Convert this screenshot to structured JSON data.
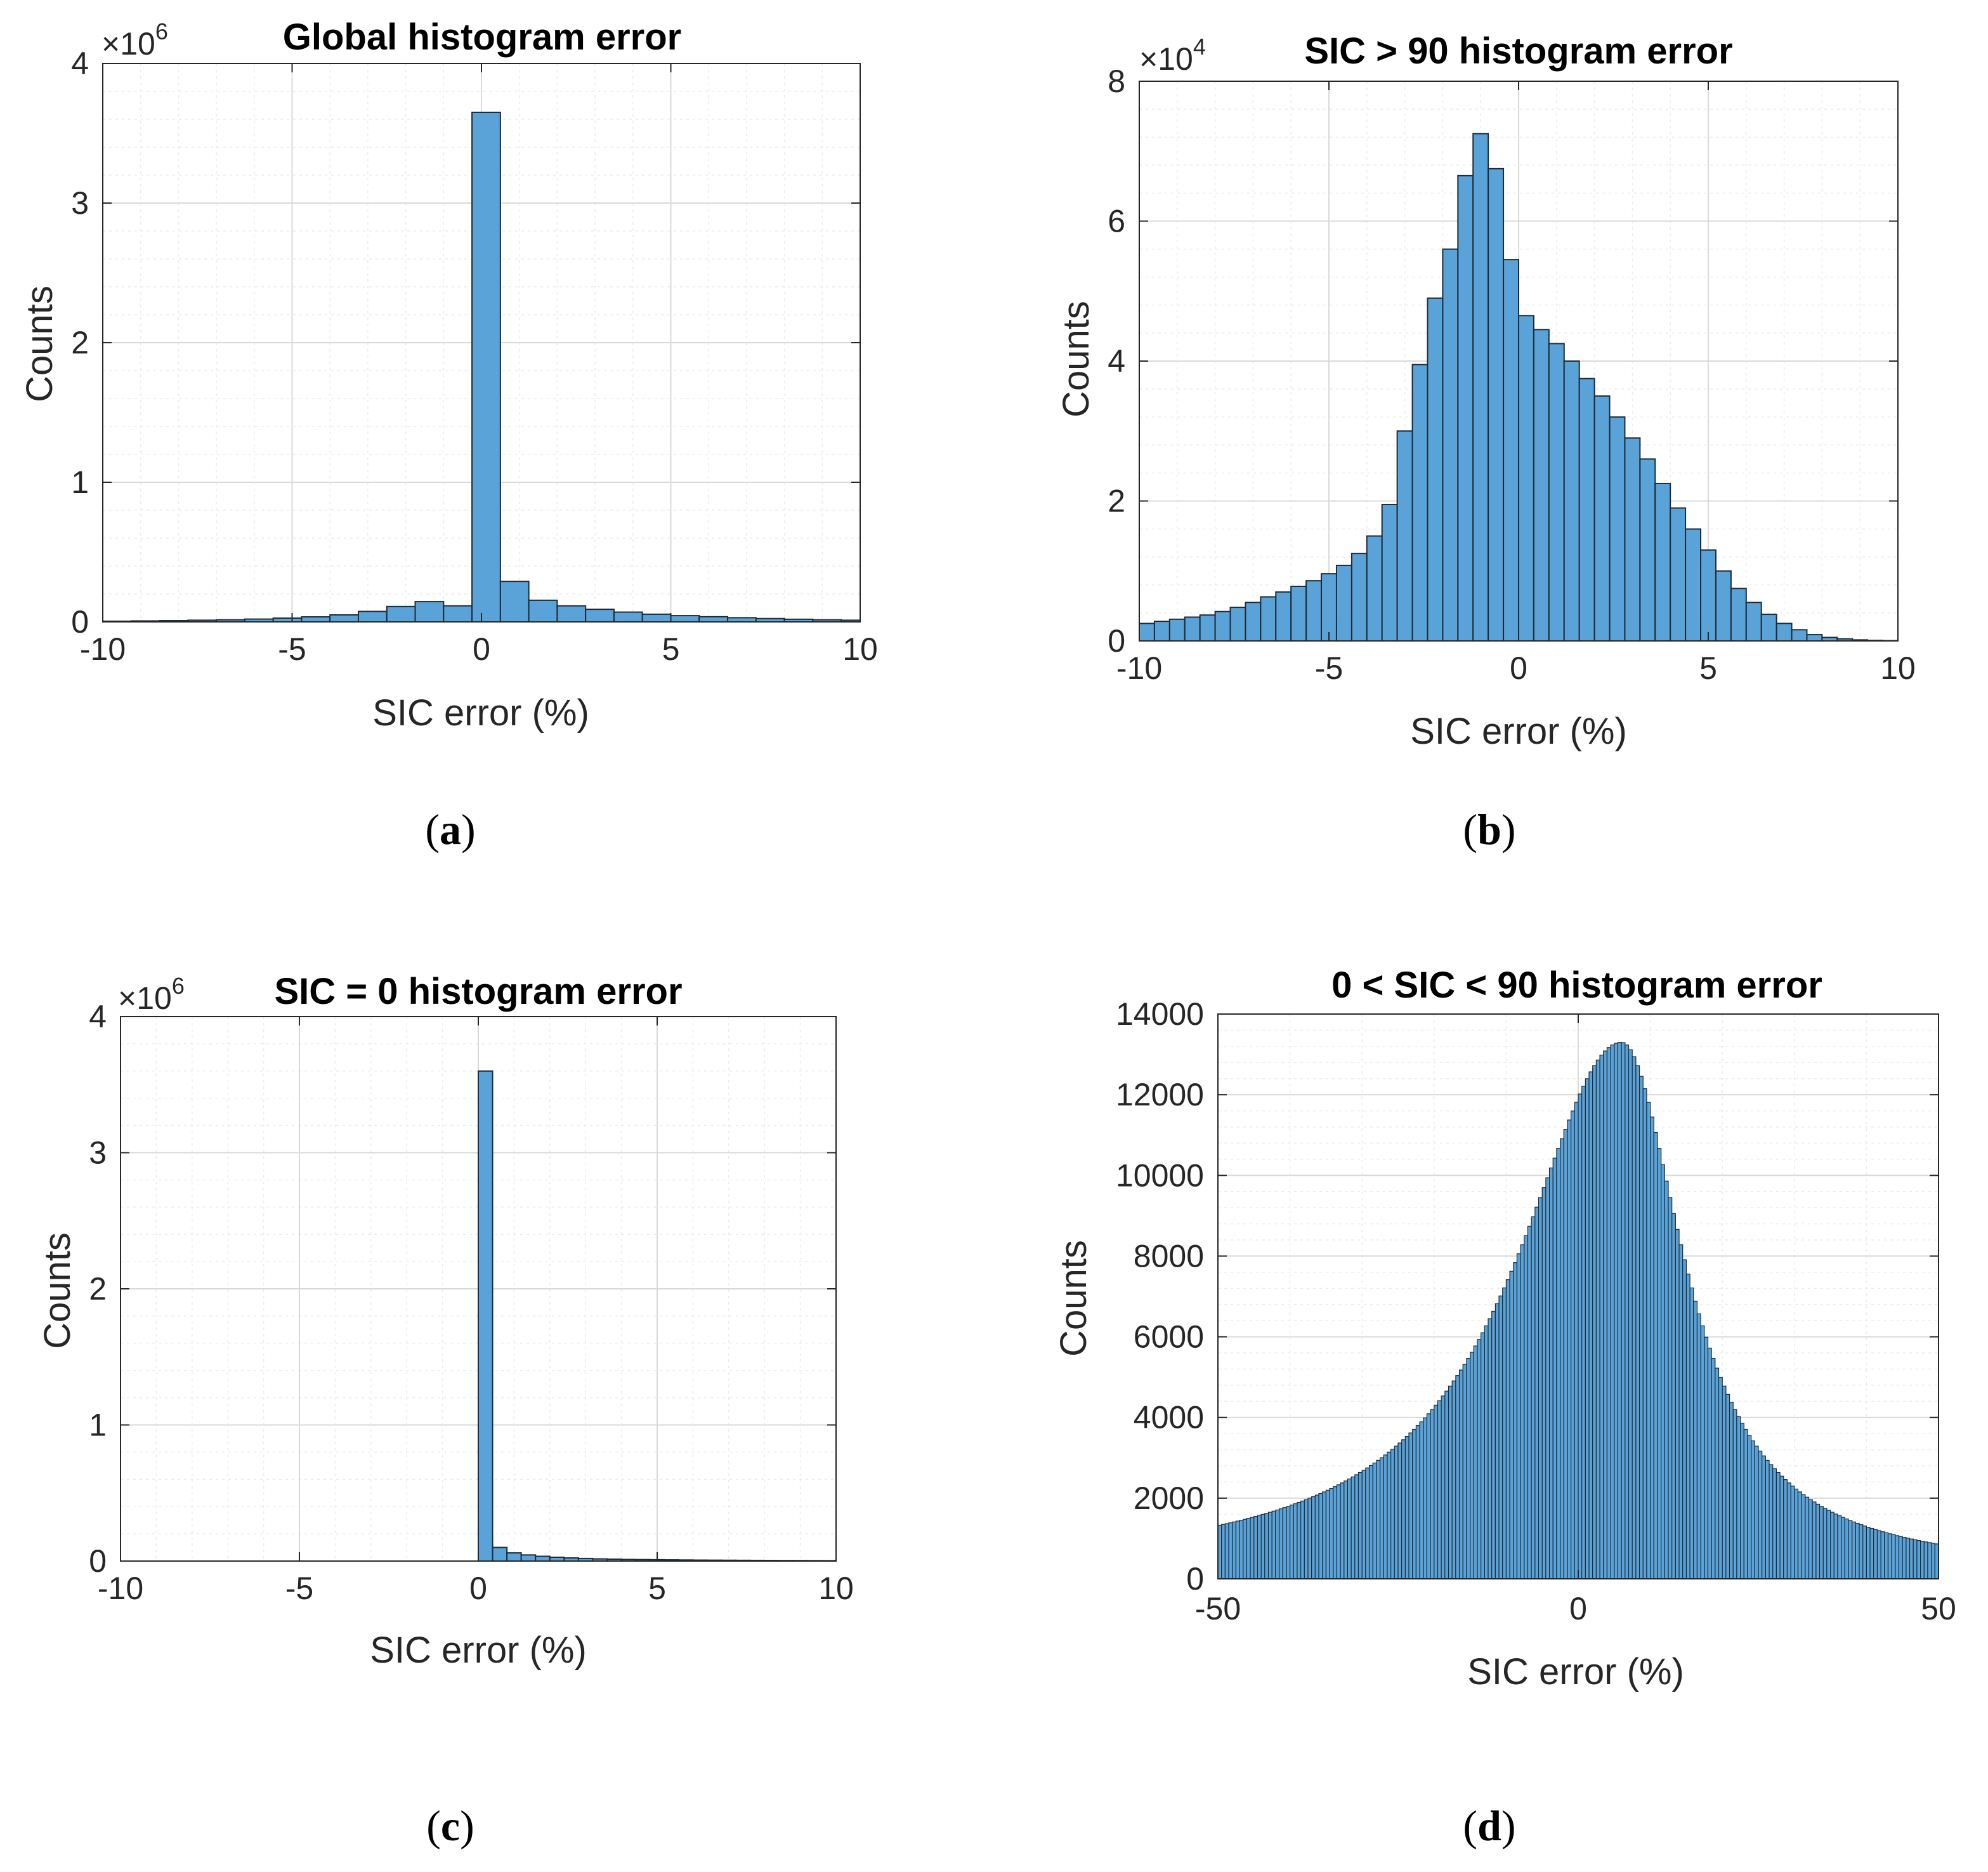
{
  "colors": {
    "bar_fill": "#5aa3d8",
    "bar_edge": "#1e2a36",
    "axes": "#262626",
    "grid_major": "#d9d9d9",
    "grid_minor": "#ececec"
  },
  "panel_labels": [
    "(a)",
    "(b)",
    "(c)",
    "(d)"
  ],
  "chart_data": [
    {
      "type": "bar",
      "id": "a",
      "title": "Global histogram error",
      "xlabel": "SIC error (%)",
      "ylabel": "Counts",
      "exponent_text": "×10",
      "exponent_power": "6",
      "xlim": [
        -10,
        10
      ],
      "ylim": [
        0,
        4
      ],
      "xticks": [
        -10,
        -5,
        0,
        5,
        10
      ],
      "xtick_labels": [
        "-10",
        "-5",
        "0",
        "5",
        "10"
      ],
      "yticks": [
        0,
        1,
        2,
        3,
        4
      ],
      "ytick_labels": [
        "0",
        "1",
        "2",
        "3",
        "4"
      ],
      "grid": true,
      "minor_grid": true,
      "bin_edges": [
        -10,
        -9.25,
        -8.5,
        -7.75,
        -7,
        -6.25,
        -5.5,
        -4.75,
        -4,
        -3.25,
        -2.5,
        -1.75,
        -1,
        -0.25,
        0.5,
        1.25,
        2,
        2.75,
        3.5,
        4.25,
        5,
        5.75,
        6.5,
        7.25,
        8,
        8.75,
        9.5,
        10
      ],
      "values": [
        0.005,
        0.007,
        0.009,
        0.012,
        0.015,
        0.02,
        0.027,
        0.036,
        0.05,
        0.075,
        0.11,
        0.145,
        0.115,
        3.65,
        0.29,
        0.155,
        0.115,
        0.09,
        0.07,
        0.055,
        0.045,
        0.037,
        0.03,
        0.024,
        0.019,
        0.015,
        0.012
      ]
    },
    {
      "type": "bar",
      "id": "b",
      "title": "SIC > 90 histogram error",
      "xlabel": "SIC error (%)",
      "ylabel": "Counts",
      "exponent_text": "×10",
      "exponent_power": "4",
      "xlim": [
        -10,
        10
      ],
      "ylim": [
        0,
        8
      ],
      "xticks": [
        -10,
        -5,
        0,
        5,
        10
      ],
      "xtick_labels": [
        "-10",
        "-5",
        "0",
        "5",
        "10"
      ],
      "yticks": [
        0,
        2,
        4,
        6,
        8
      ],
      "ytick_labels": [
        "0",
        "2",
        "4",
        "6",
        "8"
      ],
      "grid": true,
      "minor_grid": true,
      "bin_edges": [
        -10,
        -9.6,
        -9.2,
        -8.8,
        -8.4,
        -8,
        -7.6,
        -7.2,
        -6.8,
        -6.4,
        -6,
        -5.6,
        -5.2,
        -4.8,
        -4.4,
        -4,
        -3.6,
        -3.2,
        -2.8,
        -2.4,
        -2,
        -1.6,
        -1.2,
        -0.8,
        -0.4,
        0,
        0.4,
        0.8,
        1.2,
        1.6,
        2,
        2.4,
        2.8,
        3.2,
        3.6,
        4,
        4.4,
        4.8,
        5.2,
        5.6,
        6,
        6.4,
        6.8,
        7.2,
        7.6,
        8,
        8.4,
        8.8,
        9.2,
        9.6
      ],
      "values": [
        0.25,
        0.28,
        0.31,
        0.34,
        0.37,
        0.42,
        0.48,
        0.55,
        0.63,
        0.7,
        0.78,
        0.86,
        0.96,
        1.08,
        1.25,
        1.5,
        1.95,
        3.0,
        3.95,
        4.9,
        5.6,
        6.65,
        7.25,
        6.75,
        5.45,
        4.65,
        4.45,
        4.25,
        4.0,
        3.75,
        3.5,
        3.2,
        2.9,
        2.6,
        2.25,
        1.9,
        1.6,
        1.3,
        1.0,
        0.75,
        0.55,
        0.38,
        0.25,
        0.16,
        0.09,
        0.05,
        0.03,
        0.015,
        0.008,
        0.004
      ]
    },
    {
      "type": "bar",
      "id": "c",
      "title": "SIC = 0 histogram error",
      "xlabel": "SIC error (%)",
      "ylabel": "Counts",
      "exponent_text": "×10",
      "exponent_power": "6",
      "xlim": [
        -10,
        10
      ],
      "ylim": [
        0,
        4
      ],
      "xticks": [
        -10,
        -5,
        0,
        5,
        10
      ],
      "xtick_labels": [
        "-10",
        "-5",
        "0",
        "5",
        "10"
      ],
      "yticks": [
        0,
        1,
        2,
        3,
        4
      ],
      "ytick_labels": [
        "0",
        "1",
        "2",
        "3",
        "4"
      ],
      "grid": true,
      "minor_grid": true,
      "bin_edges": [
        0,
        0.4,
        0.8,
        1.2,
        1.6,
        2,
        2.4,
        2.8,
        3.2,
        3.6,
        4,
        4.4,
        4.8,
        5.2,
        5.6,
        6,
        6.4,
        6.8,
        7.2,
        7.6,
        8,
        8.4,
        8.8,
        9.2,
        9.6,
        10
      ],
      "values": [
        3.6,
        0.1,
        0.06,
        0.045,
        0.035,
        0.028,
        0.023,
        0.019,
        0.016,
        0.014,
        0.012,
        0.011,
        0.01,
        0.009,
        0.008,
        0.007,
        0.0065,
        0.006,
        0.0055,
        0.005,
        0.0045,
        0.004,
        0.0037,
        0.0034,
        0.003
      ]
    },
    {
      "type": "bar",
      "id": "d",
      "title": "0 < SIC < 90 histogram error",
      "xlabel": "SIC error (%)",
      "ylabel": "Counts",
      "exponent_text": "",
      "exponent_power": "",
      "xlim": [
        -50,
        50
      ],
      "ylim": [
        0,
        14000
      ],
      "xticks": [
        -50,
        0,
        50
      ],
      "xtick_labels": [
        "-50",
        "0",
        "50"
      ],
      "yticks": [
        0,
        2000,
        4000,
        6000,
        8000,
        10000,
        12000,
        14000
      ],
      "ytick_labels": [
        "0",
        "2000",
        "4000",
        "6000",
        "8000",
        "10000",
        "12000",
        "14000"
      ],
      "grid": true,
      "minor_grid": true,
      "bin_width": 0.5,
      "bin_start": -50,
      "peak_x": 6,
      "peak_count": 13300,
      "left_scale": 17.5,
      "right_scale": 10.5,
      "floor_count": 150,
      "values_note": "bin counts follow a skewed peaked profile: count(x) = floor + (peak - floor) / (1 + ((x - peak_x)/scale)^2)"
    }
  ]
}
